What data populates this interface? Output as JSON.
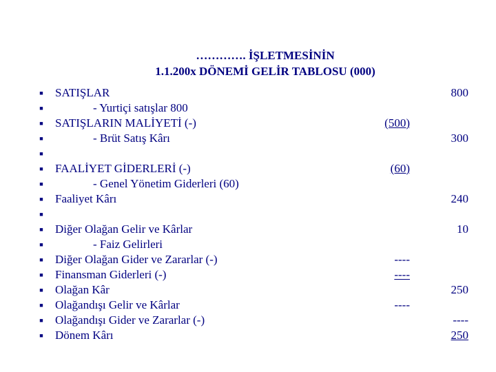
{
  "title": {
    "line1": "…………. İŞLETMESİNİN",
    "line2": "1.1.200x DÖNEMİ GELİR TABLOSU (000)"
  },
  "rows": [
    {
      "label": "SATIŞLAR",
      "col1": "",
      "col2": "800",
      "indent": false
    },
    {
      "label": "- Yurtiçi satışlar   800",
      "col1": "",
      "col2": "",
      "indent": true
    },
    {
      "label": "SATIŞLARIN MALİYETİ (-)",
      "col1": "(500)",
      "col2": "",
      "indent": false,
      "under1": true
    },
    {
      "label": "- Brüt Satış Kârı",
      "col1": "",
      "col2": "300",
      "indent": true
    },
    {
      "label": "",
      "col1": "",
      "col2": "",
      "indent": false
    },
    {
      "label": "FAALİYET GİDERLERİ (-)",
      "col1": "(60)",
      "col2": "",
      "indent": false,
      "under1": true
    },
    {
      "label": "- Genel Yönetim Giderleri (60)",
      "col1": "",
      "col2": "",
      "indent": true
    },
    {
      "label": "Faaliyet Kârı",
      "col1": "",
      "col2": "240",
      "indent": false
    },
    {
      "label": "",
      "col1": "",
      "col2": "",
      "indent": false
    },
    {
      "label": "Diğer Olağan Gelir ve Kârlar",
      "col1": "",
      "col2": "10",
      "indent": false
    },
    {
      "label": "- Faiz Gelirleri",
      "col1": "",
      "col2": "",
      "indent": true
    },
    {
      "label": "Diğer Olağan Gider ve Zararlar (-)",
      "col1": "----",
      "col2": "",
      "indent": false
    },
    {
      "label": "Finansman Giderleri  (-)",
      "col1": "----",
      "col2": "",
      "indent": false,
      "under1": true
    },
    {
      "label": "Olağan Kâr",
      "col1": "",
      "col2": "250",
      "indent": false
    },
    {
      "label": "Olağandışı Gelir ve Kârlar",
      "col1": "----",
      "col2": "",
      "indent": false
    },
    {
      "label": "Olağandışı Gider ve Zararlar (-)",
      "col1": "",
      "col2": "----",
      "indent": false
    },
    {
      "label": "Dönem Kârı",
      "col1": "",
      "col2": "250",
      "indent": false,
      "under2": true
    }
  ]
}
